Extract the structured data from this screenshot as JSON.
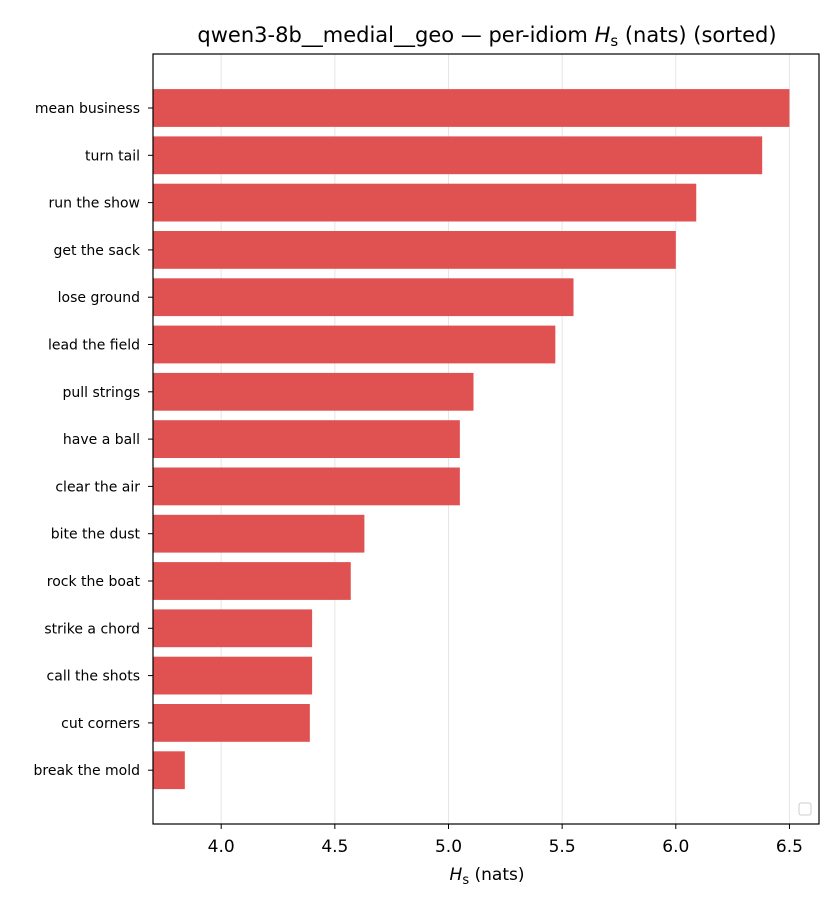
{
  "chart_data": {
    "type": "bar",
    "orientation": "horizontal",
    "title_prefix": "qwen3-8b__medial__geo — per-idiom ",
    "title_symbol": "H",
    "title_subscript": "s",
    "title_suffix": " (nats) (sorted)",
    "xlabel_symbol": "H",
    "xlabel_subscript": "s",
    "xlabel_suffix": " (nats)",
    "ylabel": "",
    "xlim": [
      3.7,
      6.63
    ],
    "xticks": [
      4.0,
      4.5,
      5.0,
      5.5,
      6.0,
      6.5
    ],
    "xtick_labels": [
      "4.0",
      "4.5",
      "5.0",
      "5.5",
      "6.0",
      "6.5"
    ],
    "grid": "vertical",
    "legend": "lower-right (empty)",
    "bar_color": "#e05252",
    "categories": [
      "mean business",
      "turn tail",
      "run the show",
      "get the sack",
      "lose ground",
      "lead the field",
      "pull strings",
      "have a ball",
      "clear the air",
      "bite the dust",
      "rock the boat",
      "strike a chord",
      "call the shots",
      "cut corners",
      "break the mold"
    ],
    "values": [
      6.5,
      6.38,
      6.09,
      6.0,
      5.55,
      5.47,
      5.11,
      5.05,
      5.05,
      4.63,
      4.57,
      4.4,
      4.4,
      4.39,
      3.84
    ]
  }
}
